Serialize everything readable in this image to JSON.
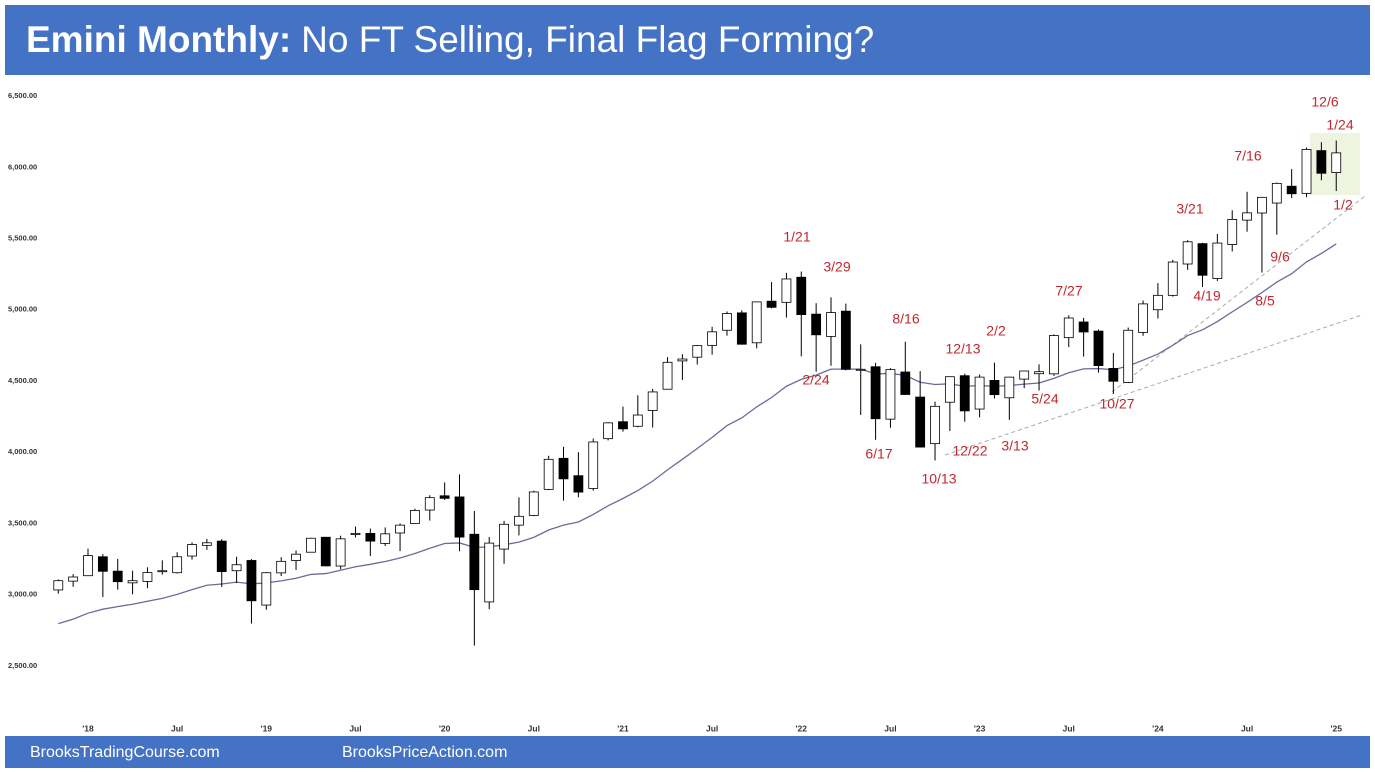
{
  "chart_data": {
    "type": "candlestick",
    "title_bold": "Emini Monthly:",
    "title": "No FT Selling, Final Flag Forming?",
    "footer": [
      "BrooksTradingCourse.com",
      "BrooksPriceAction.com"
    ],
    "categories": [
      null,
      null,
      "'18",
      null,
      null,
      null,
      null,
      null,
      "Jul",
      null,
      null,
      null,
      null,
      null,
      "'19",
      null,
      null,
      null,
      null,
      null,
      "Jul",
      null,
      null,
      null,
      null,
      null,
      "'20",
      null,
      null,
      null,
      null,
      null,
      "Jul",
      null,
      null,
      null,
      null,
      null,
      "'21",
      null,
      null,
      null,
      null,
      null,
      "Jul",
      null,
      null,
      null,
      null,
      null,
      "'22",
      null,
      null,
      null,
      null,
      null,
      "Jul",
      null,
      null,
      null,
      null,
      null,
      "'23",
      null,
      null,
      null,
      null,
      null,
      "Jul",
      null,
      null,
      null,
      null,
      null,
      "'24",
      null,
      null,
      null,
      null,
      null,
      "Jul",
      null,
      null,
      null,
      null,
      null,
      "'25"
    ],
    "open": [
      3033,
      3095,
      3133,
      3266,
      3165,
      3083,
      3093,
      3168,
      3154,
      3271,
      3346,
      3376,
      3168,
      3240,
      2927,
      3153,
      3240,
      3298,
      3403,
      3201,
      3422,
      3430,
      3360,
      3433,
      3500,
      3594,
      3694,
      3686,
      3424,
      2949,
      3320,
      3488,
      3556,
      3739,
      3957,
      3835,
      3746,
      4095,
      4214,
      4182,
      4293,
      4442,
      4641,
      4667,
      4750,
      4856,
      4978,
      4768,
      5060,
      5052,
      5228,
      4969,
      4813,
      4990,
      4581,
      4600,
      4232,
      4563,
      4387,
      4060,
      4351,
      4537,
      4303,
      4504,
      4382,
      4513,
      4551,
      4550,
      4804,
      4914,
      4850,
      4588,
      4490,
      4841,
      5000,
      5101,
      5321,
      5464,
      5219,
      5458,
      5629,
      5679,
      5749,
      5867,
      5817,
      6117,
      5963
    ],
    "high": [
      3107,
      3144,
      3323,
      3285,
      3251,
      3168,
      3192,
      3241,
      3298,
      3367,
      3391,
      3390,
      3266,
      3250,
      3158,
      3263,
      3310,
      3399,
      3404,
      3414,
      3478,
      3464,
      3472,
      3500,
      3604,
      3698,
      3788,
      3844,
      3587,
      3405,
      3518,
      3683,
      3730,
      3975,
      4038,
      4000,
      4096,
      4210,
      4320,
      4400,
      4444,
      4668,
      4688,
      4752,
      4880,
      4988,
      4996,
      5058,
      5194,
      5259,
      5268,
      5046,
      5087,
      5043,
      4757,
      4627,
      4590,
      4775,
      4569,
      4355,
      4530,
      4551,
      4545,
      4629,
      4529,
      4571,
      4617,
      4827,
      4961,
      4943,
      4861,
      4697,
      4875,
      5065,
      5187,
      5350,
      5488,
      5470,
      5532,
      5698,
      5828,
      5792,
      5893,
      5987,
      6138,
      6176,
      6188
    ],
    "low": [
      3007,
      3055,
      3133,
      2983,
      3035,
      3003,
      3045,
      3141,
      3148,
      3246,
      3314,
      3054,
      3081,
      2797,
      2894,
      3131,
      3173,
      3298,
      3200,
      3178,
      3402,
      3272,
      3342,
      3306,
      3500,
      3520,
      3664,
      3305,
      2642,
      2898,
      3217,
      3416,
      3551,
      3734,
      3660,
      3684,
      3730,
      4083,
      4144,
      4175,
      4173,
      4442,
      4507,
      4615,
      4684,
      4818,
      4755,
      4729,
      5010,
      4945,
      4673,
      4565,
      4607,
      4574,
      4261,
      4087,
      4172,
      4405,
      4034,
      3942,
      4149,
      4214,
      4245,
      4377,
      4227,
      4450,
      4433,
      4536,
      4738,
      4671,
      4558,
      4408,
      4485,
      4817,
      4938,
      5092,
      5280,
      5160,
      5202,
      5409,
      5548,
      5261,
      5527,
      5784,
      5790,
      5909,
      5833
    ],
    "close": [
      3098,
      3124,
      3274,
      3164,
      3091,
      3098,
      3155,
      3168,
      3266,
      3352,
      3364,
      3162,
      3210,
      2957,
      3154,
      3234,
      3284,
      3396,
      3202,
      3392,
      3430,
      3376,
      3427,
      3488,
      3591,
      3681,
      3676,
      3404,
      3035,
      3362,
      3494,
      3550,
      3721,
      3950,
      3813,
      3720,
      4072,
      4206,
      4164,
      4261,
      4423,
      4631,
      4654,
      4748,
      4845,
      4973,
      4758,
      5055,
      5017,
      5216,
      4966,
      4824,
      4980,
      4582,
      4582,
      4235,
      4580,
      4405,
      4036,
      4322,
      4530,
      4290,
      4527,
      4404,
      4527,
      4570,
      4565,
      4819,
      4942,
      4844,
      4608,
      4498,
      4856,
      5041,
      5101,
      5335,
      5477,
      5242,
      5468,
      5634,
      5680,
      5789,
      5887,
      5814,
      6125,
      5958,
      6101
    ],
    "up_color": "#ffffff",
    "down_color": "#000000",
    "moving_average": {
      "color": "#6b6b9c",
      "values": [
        2797,
        2828,
        2870,
        2898,
        2916,
        2933,
        2954,
        2974,
        3002,
        3035,
        3066,
        3075,
        3088,
        3076,
        3083,
        3097,
        3115,
        3142,
        3148,
        3171,
        3196,
        3213,
        3233,
        3257,
        3289,
        3326,
        3359,
        3363,
        3332,
        3335,
        3350,
        3369,
        3402,
        3454,
        3488,
        3510,
        3563,
        3624,
        3675,
        3731,
        3797,
        3876,
        3950,
        4026,
        4104,
        4187,
        4241,
        4318,
        4384,
        4463,
        4511,
        4541,
        4583,
        4583,
        4583,
        4550,
        4553,
        4539,
        4491,
        4475,
        4480,
        4462,
        4468,
        4462,
        4468,
        4478,
        4486,
        4518,
        4558,
        4585,
        4587,
        4579,
        4605,
        4646,
        4689,
        4750,
        4819,
        4859,
        4917,
        4985,
        5051,
        5121,
        5194,
        5253,
        5336,
        5395,
        5462
      ]
    },
    "ylim": [
      2050,
      6560
    ],
    "yticks": [
      {
        "value": 2500,
        "label": "2,500.00"
      },
      {
        "value": 3000,
        "label": "3,000.00"
      },
      {
        "value": 3500,
        "label": "3,500.00"
      },
      {
        "value": 4000,
        "label": "4,000.00"
      },
      {
        "value": 4500,
        "label": "4,500.00"
      },
      {
        "value": 5000,
        "label": "5,000.00"
      },
      {
        "value": 5500,
        "label": "5,500.00"
      },
      {
        "value": 6000,
        "label": "6,000.00"
      },
      {
        "value": 6500,
        "label": "6,500.00"
      }
    ],
    "annotations": [
      "12/6",
      "1/24",
      "7/16",
      "3/21",
      "1/2",
      "1/21",
      "9/6",
      "3/29",
      "4/19",
      "7/27",
      "8/5",
      "8/16",
      "2/2",
      "12/13",
      "2/24",
      "5/24",
      "10/27",
      "6/17",
      "12/22",
      "3/13",
      "10/13"
    ]
  }
}
